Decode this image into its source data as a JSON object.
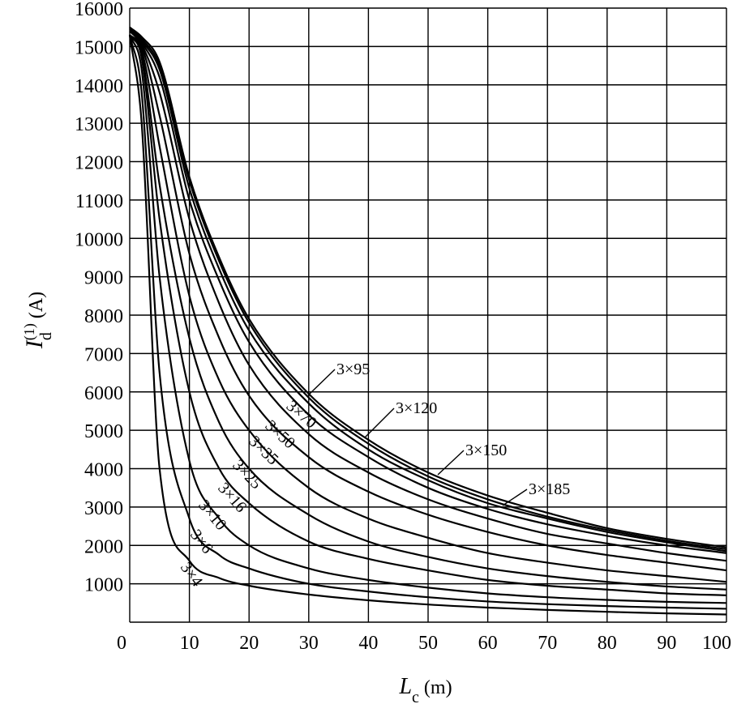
{
  "chart_data": {
    "type": "line",
    "title": "",
    "xlabel": {
      "symbol": "L",
      "sub": "c",
      "unit": " (m)"
    },
    "ylabel": {
      "symbol": "I",
      "sub": "d",
      "sup": "(1)",
      "unit": " (A)"
    },
    "xlim": [
      0,
      100
    ],
    "ylim": [
      0,
      16000
    ],
    "grid": true,
    "x_ticks": [
      "0",
      "10",
      "20",
      "30",
      "40",
      "50",
      "60",
      "70",
      "80",
      "90",
      "100"
    ],
    "y_ticks": [
      "1000",
      "2000",
      "3000",
      "4000",
      "5000",
      "6000",
      "7000",
      "8000",
      "9000",
      "10000",
      "11000",
      "12000",
      "13000",
      "14000",
      "15000",
      "16000"
    ],
    "x": [
      0,
      2,
      5,
      10,
      15,
      20,
      30,
      40,
      50,
      60,
      70,
      80,
      90,
      100
    ],
    "series": [
      {
        "name": "3×4",
        "values": [
          15300,
          13000,
          4000,
          1600,
          1150,
          950,
          720,
          570,
          460,
          380,
          320,
          270,
          230,
          200
        ]
      },
      {
        "name": "3×6",
        "values": [
          15300,
          13800,
          6500,
          2700,
          1750,
          1400,
          1000,
          800,
          650,
          540,
          470,
          420,
          380,
          350
        ]
      },
      {
        "name": "3×10",
        "values": [
          15300,
          14400,
          9000,
          4200,
          2700,
          2000,
          1400,
          1100,
          900,
          750,
          650,
          580,
          530,
          500
        ]
      },
      {
        "name": "3×16",
        "values": [
          15300,
          14700,
          10500,
          6000,
          4000,
          3100,
          2100,
          1650,
          1350,
          1100,
          950,
          850,
          750,
          700
        ]
      },
      {
        "name": "3×25",
        "values": [
          15300,
          14800,
          11400,
          7400,
          5200,
          4000,
          2800,
          2100,
          1700,
          1400,
          1200,
          1050,
          930,
          850
        ]
      },
      {
        "name": "3×35",
        "values": [
          15300,
          14900,
          12400,
          8500,
          6300,
          5000,
          3500,
          2700,
          2200,
          1800,
          1550,
          1350,
          1200,
          1050
        ]
      },
      {
        "name": "3×50",
        "values": [
          15300,
          15000,
          13200,
          9600,
          7400,
          5900,
          4300,
          3400,
          2800,
          2350,
          2000,
          1750,
          1550,
          1350
        ]
      },
      {
        "name": "3×70",
        "values": [
          15400,
          15050,
          13800,
          10500,
          8300,
          6700,
          4900,
          3900,
          3200,
          2700,
          2300,
          2050,
          1800,
          1600
        ]
      },
      {
        "name": "3×95",
        "values": [
          15450,
          15100,
          14200,
          11000,
          8900,
          7300,
          5400,
          4300,
          3500,
          2950,
          2550,
          2250,
          2000,
          1800
        ]
      },
      {
        "name": "3×120",
        "values": [
          15500,
          15150,
          14400,
          11300,
          9200,
          7600,
          5700,
          4500,
          3700,
          3100,
          2700,
          2350,
          2080,
          1850
        ]
      },
      {
        "name": "3×150",
        "values": [
          15500,
          15200,
          14500,
          11500,
          9400,
          7800,
          5850,
          4650,
          3800,
          3200,
          2750,
          2400,
          2120,
          1900
        ]
      },
      {
        "name": "3×185",
        "values": [
          15500,
          15250,
          14600,
          11600,
          9500,
          7900,
          5950,
          4750,
          3900,
          3300,
          2850,
          2450,
          2170,
          1950
        ]
      }
    ],
    "annotations": [
      {
        "text": "3×95",
        "lx": 415,
        "ly": 462,
        "ax": 380,
        "ay": 488,
        "rot": 0
      },
      {
        "text": "3×120",
        "lx": 488,
        "ly": 510,
        "ax": 450,
        "ay": 540,
        "rot": 0
      },
      {
        "text": "3×150",
        "lx": 574,
        "ly": 562,
        "ax": 540,
        "ay": 586,
        "rot": 0
      },
      {
        "text": "3×185",
        "lx": 652,
        "ly": 610,
        "ax": 620,
        "ay": 624,
        "rot": 0
      },
      {
        "text": "3×70",
        "lx": 352,
        "ly": 503,
        "rot": 40
      },
      {
        "text": "3×50",
        "lx": 326,
        "ly": 527,
        "rot": 42
      },
      {
        "text": "3×35",
        "lx": 306,
        "ly": 546,
        "rot": 44
      },
      {
        "text": "3×25",
        "lx": 286,
        "ly": 575,
        "rot": 46
      },
      {
        "text": "3×16",
        "lx": 268,
        "ly": 603,
        "rot": 48
      },
      {
        "text": "3×10",
        "lx": 244,
        "ly": 624,
        "rot": 50
      },
      {
        "text": "3×6",
        "lx": 234,
        "ly": 660,
        "rot": 52
      },
      {
        "text": "3×4",
        "lx": 222,
        "ly": 700,
        "rot": 54
      }
    ]
  }
}
